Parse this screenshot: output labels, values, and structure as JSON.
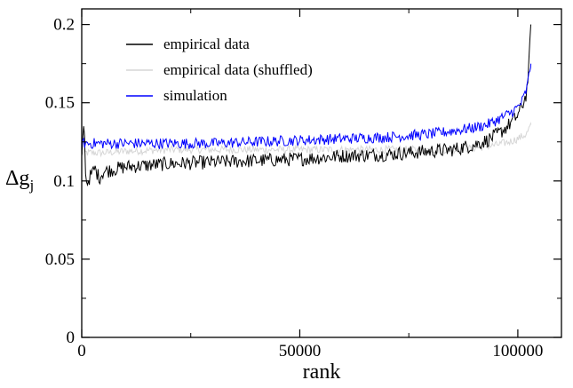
{
  "chart_data": {
    "type": "line",
    "title": "",
    "xlabel": "rank",
    "ylabel": "Δg",
    "ylabel_subscript": "j",
    "xlim": [
      0,
      110000
    ],
    "ylim": [
      0,
      0.21
    ],
    "x_ticks": [
      0,
      50000,
      100000
    ],
    "x_tick_labels": [
      "0",
      "50000",
      "100000"
    ],
    "y_ticks": [
      0,
      0.05,
      0.1,
      0.15,
      0.2
    ],
    "y_tick_labels": [
      "0",
      "0.05",
      "0.1",
      "0.15",
      "0.2"
    ],
    "grid": false,
    "legend_position": "top-left",
    "series": [
      {
        "name": "empirical data (shuffled)",
        "color": "#d6d6d6",
        "x": [
          0,
          5000,
          10000,
          20000,
          30000,
          40000,
          50000,
          60000,
          70000,
          80000,
          85000,
          90000,
          95000,
          98000,
          100000,
          102000,
          103000
        ],
        "y": [
          0.118,
          0.118,
          0.119,
          0.12,
          0.12,
          0.12,
          0.12,
          0.12,
          0.12,
          0.12,
          0.12,
          0.121,
          0.123,
          0.125,
          0.127,
          0.13,
          0.136
        ]
      },
      {
        "name": "empirical data",
        "color": "#000000",
        "x": [
          0,
          500,
          1000,
          2000,
          3000,
          4000,
          5000,
          10000,
          20000,
          30000,
          40000,
          50000,
          60000,
          70000,
          80000,
          85000,
          90000,
          93000,
          96000,
          98000,
          100000,
          101000,
          102000,
          102500,
          103000
        ],
        "y": [
          0.112,
          0.14,
          0.098,
          0.103,
          0.108,
          0.102,
          0.106,
          0.109,
          0.111,
          0.112,
          0.113,
          0.114,
          0.116,
          0.117,
          0.119,
          0.12,
          0.123,
          0.126,
          0.131,
          0.136,
          0.142,
          0.148,
          0.156,
          0.172,
          0.2
        ]
      },
      {
        "name": "simulation",
        "color": "#0000ff",
        "x": [
          0,
          5000,
          10000,
          20000,
          30000,
          40000,
          50000,
          60000,
          70000,
          80000,
          85000,
          90000,
          93000,
          96000,
          98000,
          100000,
          101000,
          102000,
          103000
        ],
        "y": [
          0.124,
          0.124,
          0.124,
          0.124,
          0.124,
          0.125,
          0.126,
          0.127,
          0.128,
          0.13,
          0.132,
          0.134,
          0.136,
          0.14,
          0.143,
          0.147,
          0.151,
          0.158,
          0.175
        ]
      }
    ]
  }
}
